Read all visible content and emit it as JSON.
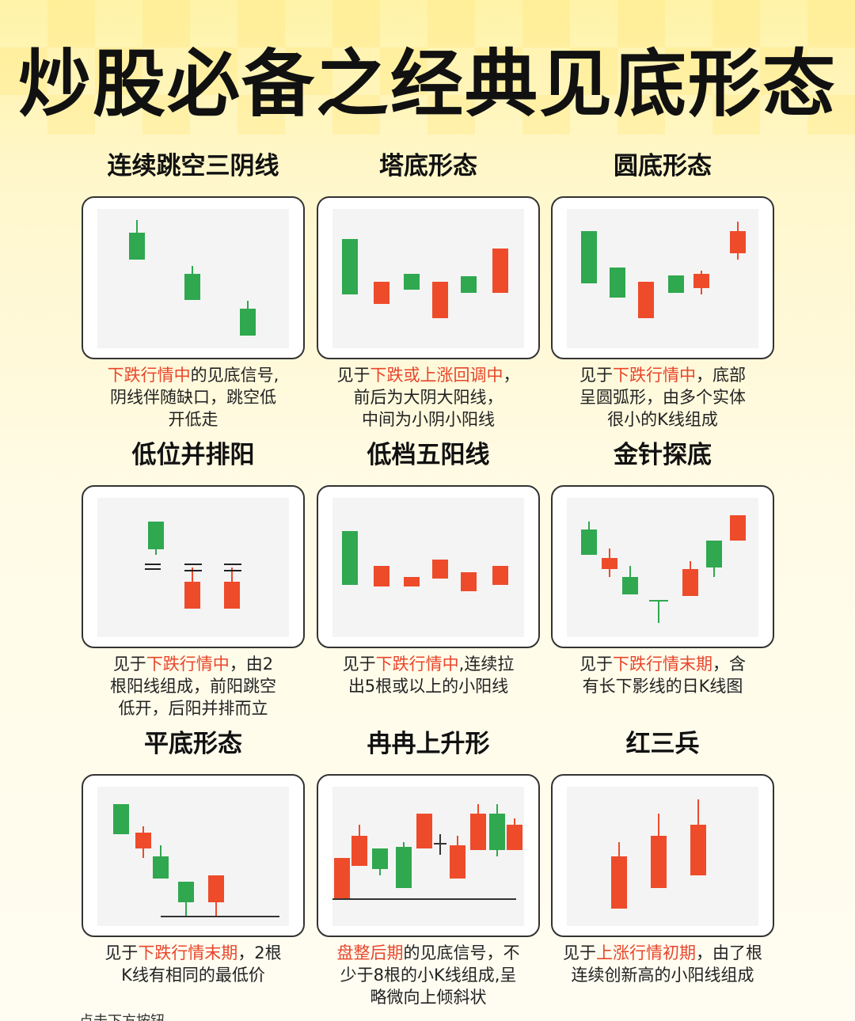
{
  "title": "炒股必备之经典见底形态",
  "patterns": [
    {
      "name": "连续跳空三阴线",
      "desc": [
        [
          "下跌行情中",
          true
        ],
        [
          "的见底信号,",
          false
        ],
        [
          "\n",
          false
        ],
        [
          "阴线伴随缺口，跳空低",
          false
        ],
        [
          "\n",
          false
        ],
        [
          "开低走",
          false
        ]
      ]
    },
    {
      "name": "塔底形态",
      "desc": [
        [
          "见于",
          false
        ],
        [
          "下跌或上涨回调中",
          true
        ],
        [
          "，",
          false
        ],
        [
          "\n",
          false
        ],
        [
          "前后为大阴大阳线，",
          false
        ],
        [
          "\n",
          false
        ],
        [
          "中间为小阴小阳线",
          false
        ]
      ]
    },
    {
      "name": "圆底形态",
      "desc": [
        [
          "见于",
          false
        ],
        [
          "下跌行情中",
          true
        ],
        [
          "，底部",
          false
        ],
        [
          "\n",
          false
        ],
        [
          "呈圆弧形，由多个实体",
          false
        ],
        [
          "\n",
          false
        ],
        [
          "很小的K线组成",
          false
        ]
      ]
    },
    {
      "name": "低位并排阳",
      "desc": [
        [
          "见于",
          false
        ],
        [
          "下跌行情中",
          true
        ],
        [
          "，由2",
          false
        ],
        [
          "\n",
          false
        ],
        [
          "根阳线组成，前阳跳空",
          false
        ],
        [
          "\n",
          false
        ],
        [
          "低开，后阳并排而立",
          false
        ]
      ]
    },
    {
      "name": "低档五阳线",
      "desc": [
        [
          "见于",
          false
        ],
        [
          "下跌行情中",
          true
        ],
        [
          ",连续拉",
          false
        ],
        [
          "\n",
          false
        ],
        [
          "出5根或以上的小阳线",
          false
        ]
      ]
    },
    {
      "name": "金针探底",
      "desc": [
        [
          "见于",
          false
        ],
        [
          "下跌行情末期",
          true
        ],
        [
          "，含",
          false
        ],
        [
          "\n",
          false
        ],
        [
          "有长下影线的日K线图",
          false
        ]
      ]
    },
    {
      "name": "平底形态",
      "desc": [
        [
          "见于",
          false
        ],
        [
          "下跌行情末期",
          true
        ],
        [
          "，2根",
          false
        ],
        [
          "\n",
          false
        ],
        [
          "K线有相同的最低价",
          false
        ]
      ]
    },
    {
      "name": "冉冉上升形",
      "desc": [
        [
          "盘整后期",
          true
        ],
        [
          "的见底信号，不",
          false
        ],
        [
          "\n",
          false
        ],
        [
          "少于8根的小K线组成,呈",
          false
        ],
        [
          "\n",
          false
        ],
        [
          "略微向上倾斜状",
          false
        ]
      ]
    },
    {
      "name": "红三兵",
      "desc": [
        [
          "见于",
          false
        ],
        [
          "上涨行情初期",
          true
        ],
        [
          "，由了根",
          false
        ],
        [
          "\n",
          false
        ],
        [
          "连续创新高的小阳线组成",
          false
        ]
      ]
    }
  ],
  "colors": {
    "bull": "#ee4b2b",
    "bear": "#2fa84f",
    "chart_bg": "#f4f4f4",
    "highlight": "#e8462b"
  },
  "footer": "点击下方按钮"
}
